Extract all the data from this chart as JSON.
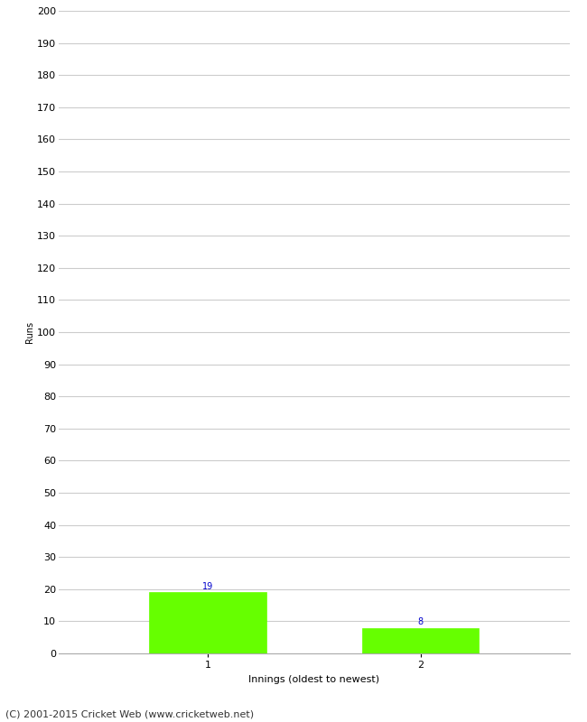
{
  "categories": [
    1,
    2
  ],
  "values": [
    19,
    8
  ],
  "bar_color": "#66ff00",
  "bar_edge_color": "#66ff00",
  "ylabel": "Runs",
  "xlabel": "Innings (oldest to newest)",
  "ylim": [
    0,
    200
  ],
  "ytick_step": 10,
  "value_labels": [
    19,
    8
  ],
  "value_label_color": "#0000cc",
  "value_label_fontsize": 7,
  "footer": "(C) 2001-2015 Cricket Web (www.cricketweb.net)",
  "footer_fontsize": 8,
  "xlabel_fontsize": 8,
  "ylabel_fontsize": 7,
  "tick_fontsize": 8,
  "background_color": "#ffffff",
  "grid_color": "#cccccc",
  "bar_width": 0.55,
  "xlim": [
    0.3,
    2.7
  ]
}
